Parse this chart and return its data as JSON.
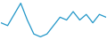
{
  "x": [
    0,
    1,
    2,
    3,
    4,
    5,
    6,
    7,
    8,
    9,
    10,
    11,
    12,
    13,
    14,
    15,
    16
  ],
  "y": [
    6,
    5,
    9,
    13,
    7,
    2,
    1,
    2,
    5,
    8,
    7,
    10,
    7,
    9,
    6,
    9,
    8
  ],
  "line_color": "#2196c8",
  "linewidth": 0.9,
  "background_color": "#ffffff",
  "ylim_min": 0,
  "ylim_max": 14
}
